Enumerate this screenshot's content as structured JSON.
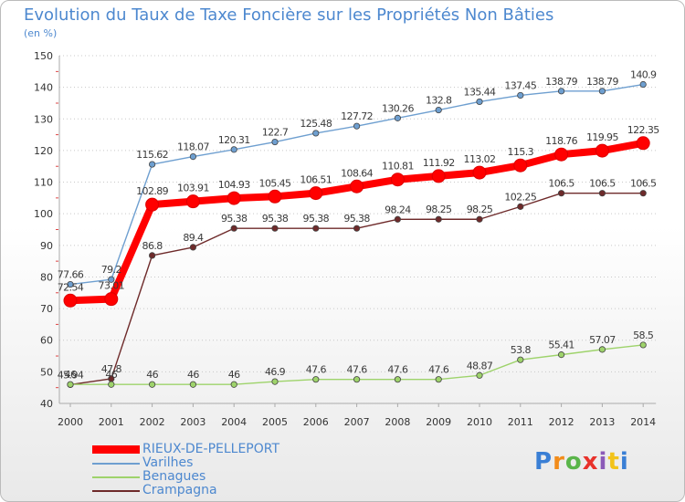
{
  "header": {
    "title": "Evolution du Taux de Taxe Foncière sur les Propriétés Non Bâties",
    "unit": "(en %)"
  },
  "chart_data": {
    "type": "line",
    "title": "Evolution du Taux de Taxe Foncière sur les Propriétés Non Bâties",
    "ylabel": "(en %)",
    "xlabel": "",
    "ylim": [
      40,
      150
    ],
    "yticks": [
      40,
      50,
      60,
      70,
      80,
      90,
      100,
      110,
      120,
      130,
      140,
      150
    ],
    "grid": "horizontal dotted",
    "categories": [
      "2000",
      "2001",
      "2002",
      "2003",
      "2004",
      "2005",
      "2006",
      "2007",
      "2008",
      "2009",
      "2010",
      "2011",
      "2012",
      "2013",
      "2014"
    ],
    "series": [
      {
        "name": "Varilhes",
        "color": "#6e9fd0",
        "values": [
          77.66,
          79.2,
          115.62,
          118.07,
          120.31,
          122.7,
          125.48,
          127.72,
          130.26,
          132.8,
          135.44,
          137.45,
          138.79,
          138.79,
          140.9
        ],
        "labels": [
          "77.66",
          "79.2",
          "115.62",
          "118.07",
          "120.31",
          "122.7",
          "125.48",
          "127.72",
          "130.26",
          "132.8",
          "135.44",
          "137.45",
          "138.79",
          "138.79",
          "140.9"
        ]
      },
      {
        "name": "Crampagna",
        "color": "#6e2a2a",
        "values": [
          45.94,
          47.8,
          86.8,
          89.4,
          95.38,
          95.38,
          95.38,
          95.38,
          98.24,
          98.25,
          98.25,
          102.25,
          106.5,
          106.5,
          106.5
        ],
        "labels": [
          "45.94",
          "47.8",
          "86.8",
          "89.4",
          "95.38",
          "95.38",
          "95.38",
          "95.38",
          "98.24",
          "98.25",
          "98.25",
          "102.25",
          "106.5",
          "106.5",
          "106.5"
        ]
      },
      {
        "name": "Benagues",
        "color": "#9ed36b",
        "values": [
          46,
          46,
          46,
          46,
          46,
          46.9,
          47.6,
          47.6,
          47.6,
          47.6,
          48.87,
          53.8,
          55.41,
          57.07,
          58.5
        ],
        "labels": [
          "46",
          "46",
          "46",
          "46",
          "46",
          "46.9",
          "47.6",
          "47.6",
          "47.6",
          "47.6",
          "48.87",
          "53.8",
          "55.41",
          "57.07",
          "58.5"
        ]
      },
      {
        "name": "RIEUX-DE-PELLEPORT",
        "color": "#ff0000",
        "values": [
          72.54,
          73.01,
          102.89,
          103.91,
          104.93,
          105.45,
          106.51,
          108.64,
          110.81,
          111.92,
          113.02,
          115.3,
          118.76,
          119.95,
          122.35
        ],
        "labels": [
          "72.54",
          "73.01",
          "102.89",
          "103.91",
          "104.93",
          "105.45",
          "106.51",
          "108.64",
          "110.81",
          "111.92",
          "113.02",
          "115.3",
          "118.76",
          "119.95",
          "122.35"
        ]
      }
    ],
    "legend": {
      "position": "bottom-left",
      "items": [
        {
          "name": "RIEUX-DE-PELLEPORT",
          "color": "#ff0000",
          "style": "thick"
        },
        {
          "name": "Varilhes",
          "color": "#6e9fd0",
          "style": "thin"
        },
        {
          "name": "Benagues",
          "color": "#9ed36b",
          "style": "thin"
        },
        {
          "name": "Crampagna",
          "color": "#6e2a2a",
          "style": "thin"
        }
      ]
    }
  },
  "logo": {
    "letters": [
      "P",
      "r",
      "o",
      "x",
      "i",
      "t",
      "i"
    ],
    "colors": [
      "#3a7fd5",
      "#f28c1a",
      "#5ab54a",
      "#e8322b",
      "#8b5ab8",
      "#f2c31a",
      "#3a7fd5"
    ]
  }
}
